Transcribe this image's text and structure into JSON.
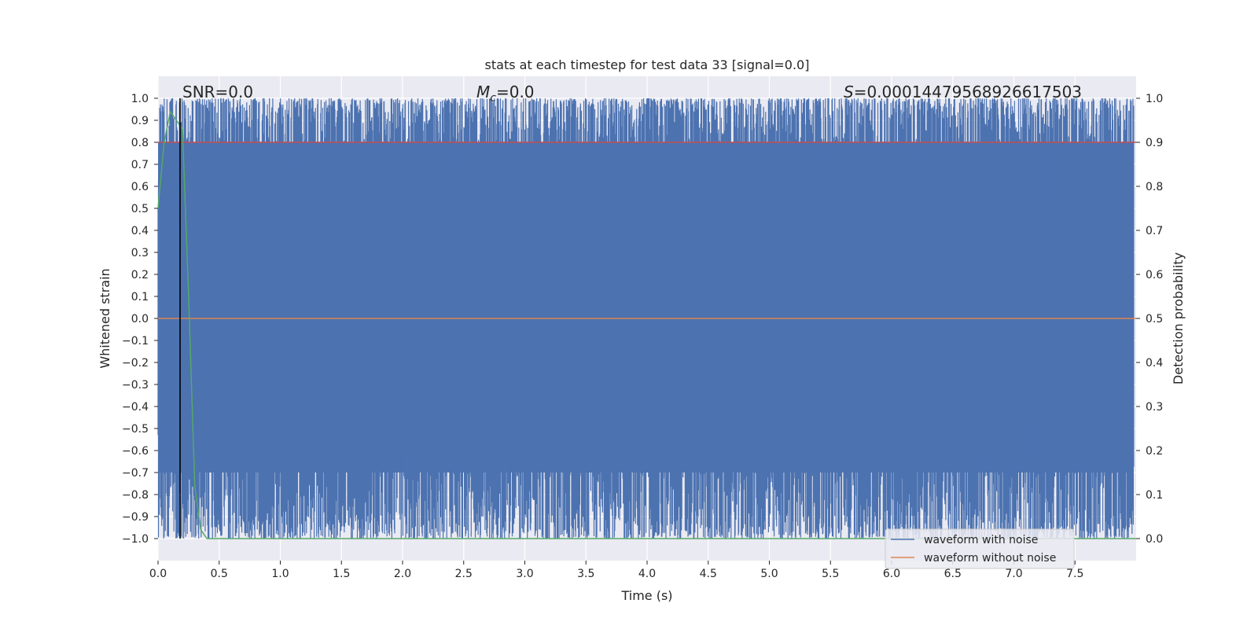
{
  "chart_data": {
    "type": "line",
    "title": "stats at each timestep for test data 33 [signal=0.0]",
    "xlabel": "Time (s)",
    "ylabel_left": "Whitened strain",
    "ylabel_right": "Detection probability",
    "xlim": [
      0.0,
      8.0
    ],
    "ylim_left": [
      -1.1,
      1.1
    ],
    "ylim_right": [
      -0.05,
      1.05
    ],
    "x_ticks": [
      "0.0",
      "0.5",
      "1.0",
      "1.5",
      "2.0",
      "2.5",
      "3.0",
      "3.5",
      "4.0",
      "4.5",
      "5.0",
      "5.5",
      "6.0",
      "6.5",
      "7.0",
      "7.5"
    ],
    "y_ticks_left": [
      "1.0",
      "0.9",
      "0.8",
      "0.7",
      "0.6",
      "0.5",
      "0.4",
      "0.3",
      "0.2",
      "0.1",
      "0.0",
      "−0.1",
      "−0.2",
      "−0.3",
      "−0.4",
      "−0.5",
      "−0.6",
      "−0.7",
      "−0.8",
      "−0.9",
      "−1.0"
    ],
    "y_ticks_right": [
      "1.0",
      "0.9",
      "0.8",
      "0.7",
      "0.6",
      "0.5",
      "0.4",
      "0.3",
      "0.2",
      "0.1",
      "0.0"
    ],
    "grid": true,
    "legend_position": "lower-right",
    "annotations": {
      "snr": "SNR=0.0",
      "mc_symbol": "M",
      "mc_sub": "c",
      "mc_value": "=0.0",
      "s_symbol": "S",
      "s_value": "=0.00014479568926617503"
    },
    "series": [
      {
        "name": "waveform with noise",
        "color": "#4c72b0",
        "axis": "left",
        "description_range": [
          -1.0,
          1.0
        ]
      },
      {
        "name": "waveform without noise",
        "color": "#dd8452",
        "axis": "left",
        "x": [
          0.0,
          8.0
        ],
        "y": [
          0.0,
          0.0
        ]
      },
      {
        "color": "#c44e52",
        "axis": "right",
        "x": [
          0.0,
          8.0
        ],
        "y": [
          0.9,
          0.9
        ]
      },
      {
        "color": "#55a868",
        "axis": "right",
        "x": [
          0.0,
          0.05,
          0.1,
          0.15,
          0.2,
          0.25,
          0.3,
          0.35,
          0.4,
          8.0
        ],
        "y": [
          0.75,
          0.9,
          0.97,
          0.95,
          0.93,
          0.55,
          0.12,
          0.02,
          0.0,
          0.0
        ]
      },
      {
        "color": "#000000",
        "axis": "left",
        "x": [
          0.18,
          0.18
        ],
        "y": [
          -1.0,
          1.0
        ]
      }
    ]
  }
}
